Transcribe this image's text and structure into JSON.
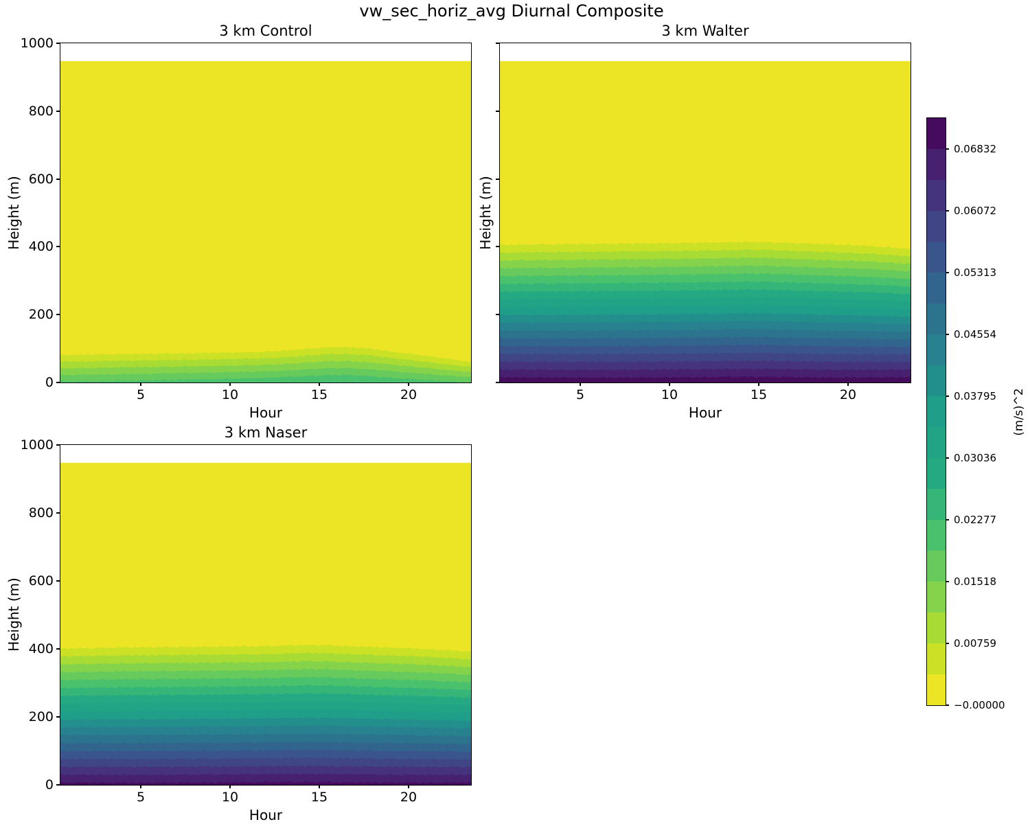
{
  "figure": {
    "suptitle": "vw_sec_horiz_avg Diurnal Composite",
    "background": "#ffffff",
    "text_color": "#000000"
  },
  "axes": {
    "xlabel": "Hour",
    "ylabel": "Height (m)",
    "xlim": [
      0.5,
      23.5
    ],
    "ylim": [
      0,
      1000
    ],
    "xticks": [
      5,
      10,
      15,
      20
    ],
    "yticks": [
      0,
      200,
      400,
      600,
      800,
      1000
    ]
  },
  "levels": {
    "min": 0.0,
    "step": 0.0037953,
    "count": 19,
    "colormap": "viridis_r"
  },
  "band_colors": [
    "#ece525",
    "#cae126",
    "#a8db34",
    "#85d34a",
    "#66ca5c",
    "#4ac16d",
    "#36b578",
    "#24a983",
    "#21a386",
    "#1f9e89",
    "#238f8c",
    "#27818e",
    "#2c738e",
    "#32658d",
    "#39558b",
    "#404586",
    "#45337d",
    "#472070",
    "#450b5d"
  ],
  "colorbar": {
    "label": "(m/s)^2",
    "tick_labels": [
      "0.06832",
      "0.06072",
      "0.05313",
      "0.04554",
      "0.03795",
      "0.03036",
      "0.02277",
      "0.01518",
      "0.00759",
      "−0.00000"
    ]
  },
  "chart_data": [
    {
      "type": "heatmap",
      "title": "3 km Control",
      "xlabel": "Hour",
      "ylabel": "Height (m)",
      "data_top_m": 947,
      "hours": [
        0.5,
        1.5,
        2.5,
        3.5,
        4.5,
        5.5,
        6.5,
        7.5,
        8.5,
        9.5,
        10.5,
        11.5,
        12.5,
        13.5,
        14.5,
        15.5,
        16.5,
        17.5,
        18.5,
        19.5,
        20.5,
        21.5,
        22.5,
        23.5
      ],
      "zero_height_m": [
        100,
        101,
        102,
        103,
        104,
        104,
        105,
        105,
        106,
        107,
        108,
        109,
        111,
        115,
        120,
        124,
        125,
        122,
        115,
        107,
        100,
        92,
        84,
        76
      ],
      "surface_value": [
        0.0195,
        0.0195,
        0.0196,
        0.0198,
        0.02,
        0.0202,
        0.0204,
        0.0206,
        0.0208,
        0.021,
        0.0212,
        0.0215,
        0.0218,
        0.0222,
        0.0226,
        0.023,
        0.023,
        0.0226,
        0.022,
        0.0214,
        0.0208,
        0.0202,
        0.0196,
        0.019
      ]
    },
    {
      "type": "heatmap",
      "title": "3 km Walter",
      "xlabel": "Hour",
      "ylabel": "Height (m)",
      "data_top_m": 947,
      "hours": [
        0.5,
        1.5,
        2.5,
        3.5,
        4.5,
        5.5,
        6.5,
        7.5,
        8.5,
        9.5,
        10.5,
        11.5,
        12.5,
        13.5,
        14.5,
        15.5,
        16.5,
        17.5,
        18.5,
        19.5,
        20.5,
        21.5,
        22.5,
        23.5
      ],
      "zero_height_m": [
        428,
        429,
        430,
        430,
        431,
        432,
        432,
        433,
        433,
        434,
        434,
        435,
        436,
        437,
        438,
        437,
        435,
        433,
        431,
        429,
        427,
        424,
        420,
        416
      ],
      "surface_value": [
        0.0708,
        0.0708,
        0.0707,
        0.0707,
        0.0706,
        0.0706,
        0.0706,
        0.0706,
        0.0707,
        0.0707,
        0.0708,
        0.0708,
        0.0709,
        0.071,
        0.071,
        0.071,
        0.0709,
        0.0708,
        0.0707,
        0.0707,
        0.0707,
        0.0708,
        0.0709,
        0.071
      ]
    },
    {
      "type": "heatmap",
      "title": "3 km Naser",
      "xlabel": "Hour",
      "ylabel": "Height (m)",
      "data_top_m": 947,
      "hours": [
        0.5,
        1.5,
        2.5,
        3.5,
        4.5,
        5.5,
        6.5,
        7.5,
        8.5,
        9.5,
        10.5,
        11.5,
        12.5,
        13.5,
        14.5,
        15.5,
        16.5,
        17.5,
        18.5,
        19.5,
        20.5,
        21.5,
        22.5,
        23.5
      ],
      "zero_height_m": [
        424,
        425,
        426,
        427,
        428,
        428,
        429,
        429,
        430,
        430,
        431,
        431,
        432,
        434,
        435,
        434,
        432,
        430,
        428,
        426,
        424,
        421,
        418,
        414
      ],
      "surface_value": [
        0.0694,
        0.0694,
        0.0694,
        0.0693,
        0.0693,
        0.0693,
        0.0693,
        0.0694,
        0.0694,
        0.0694,
        0.0695,
        0.0695,
        0.0696,
        0.0696,
        0.0696,
        0.0696,
        0.0695,
        0.0695,
        0.0694,
        0.0694,
        0.0694,
        0.0694,
        0.0695,
        0.0695
      ]
    }
  ]
}
